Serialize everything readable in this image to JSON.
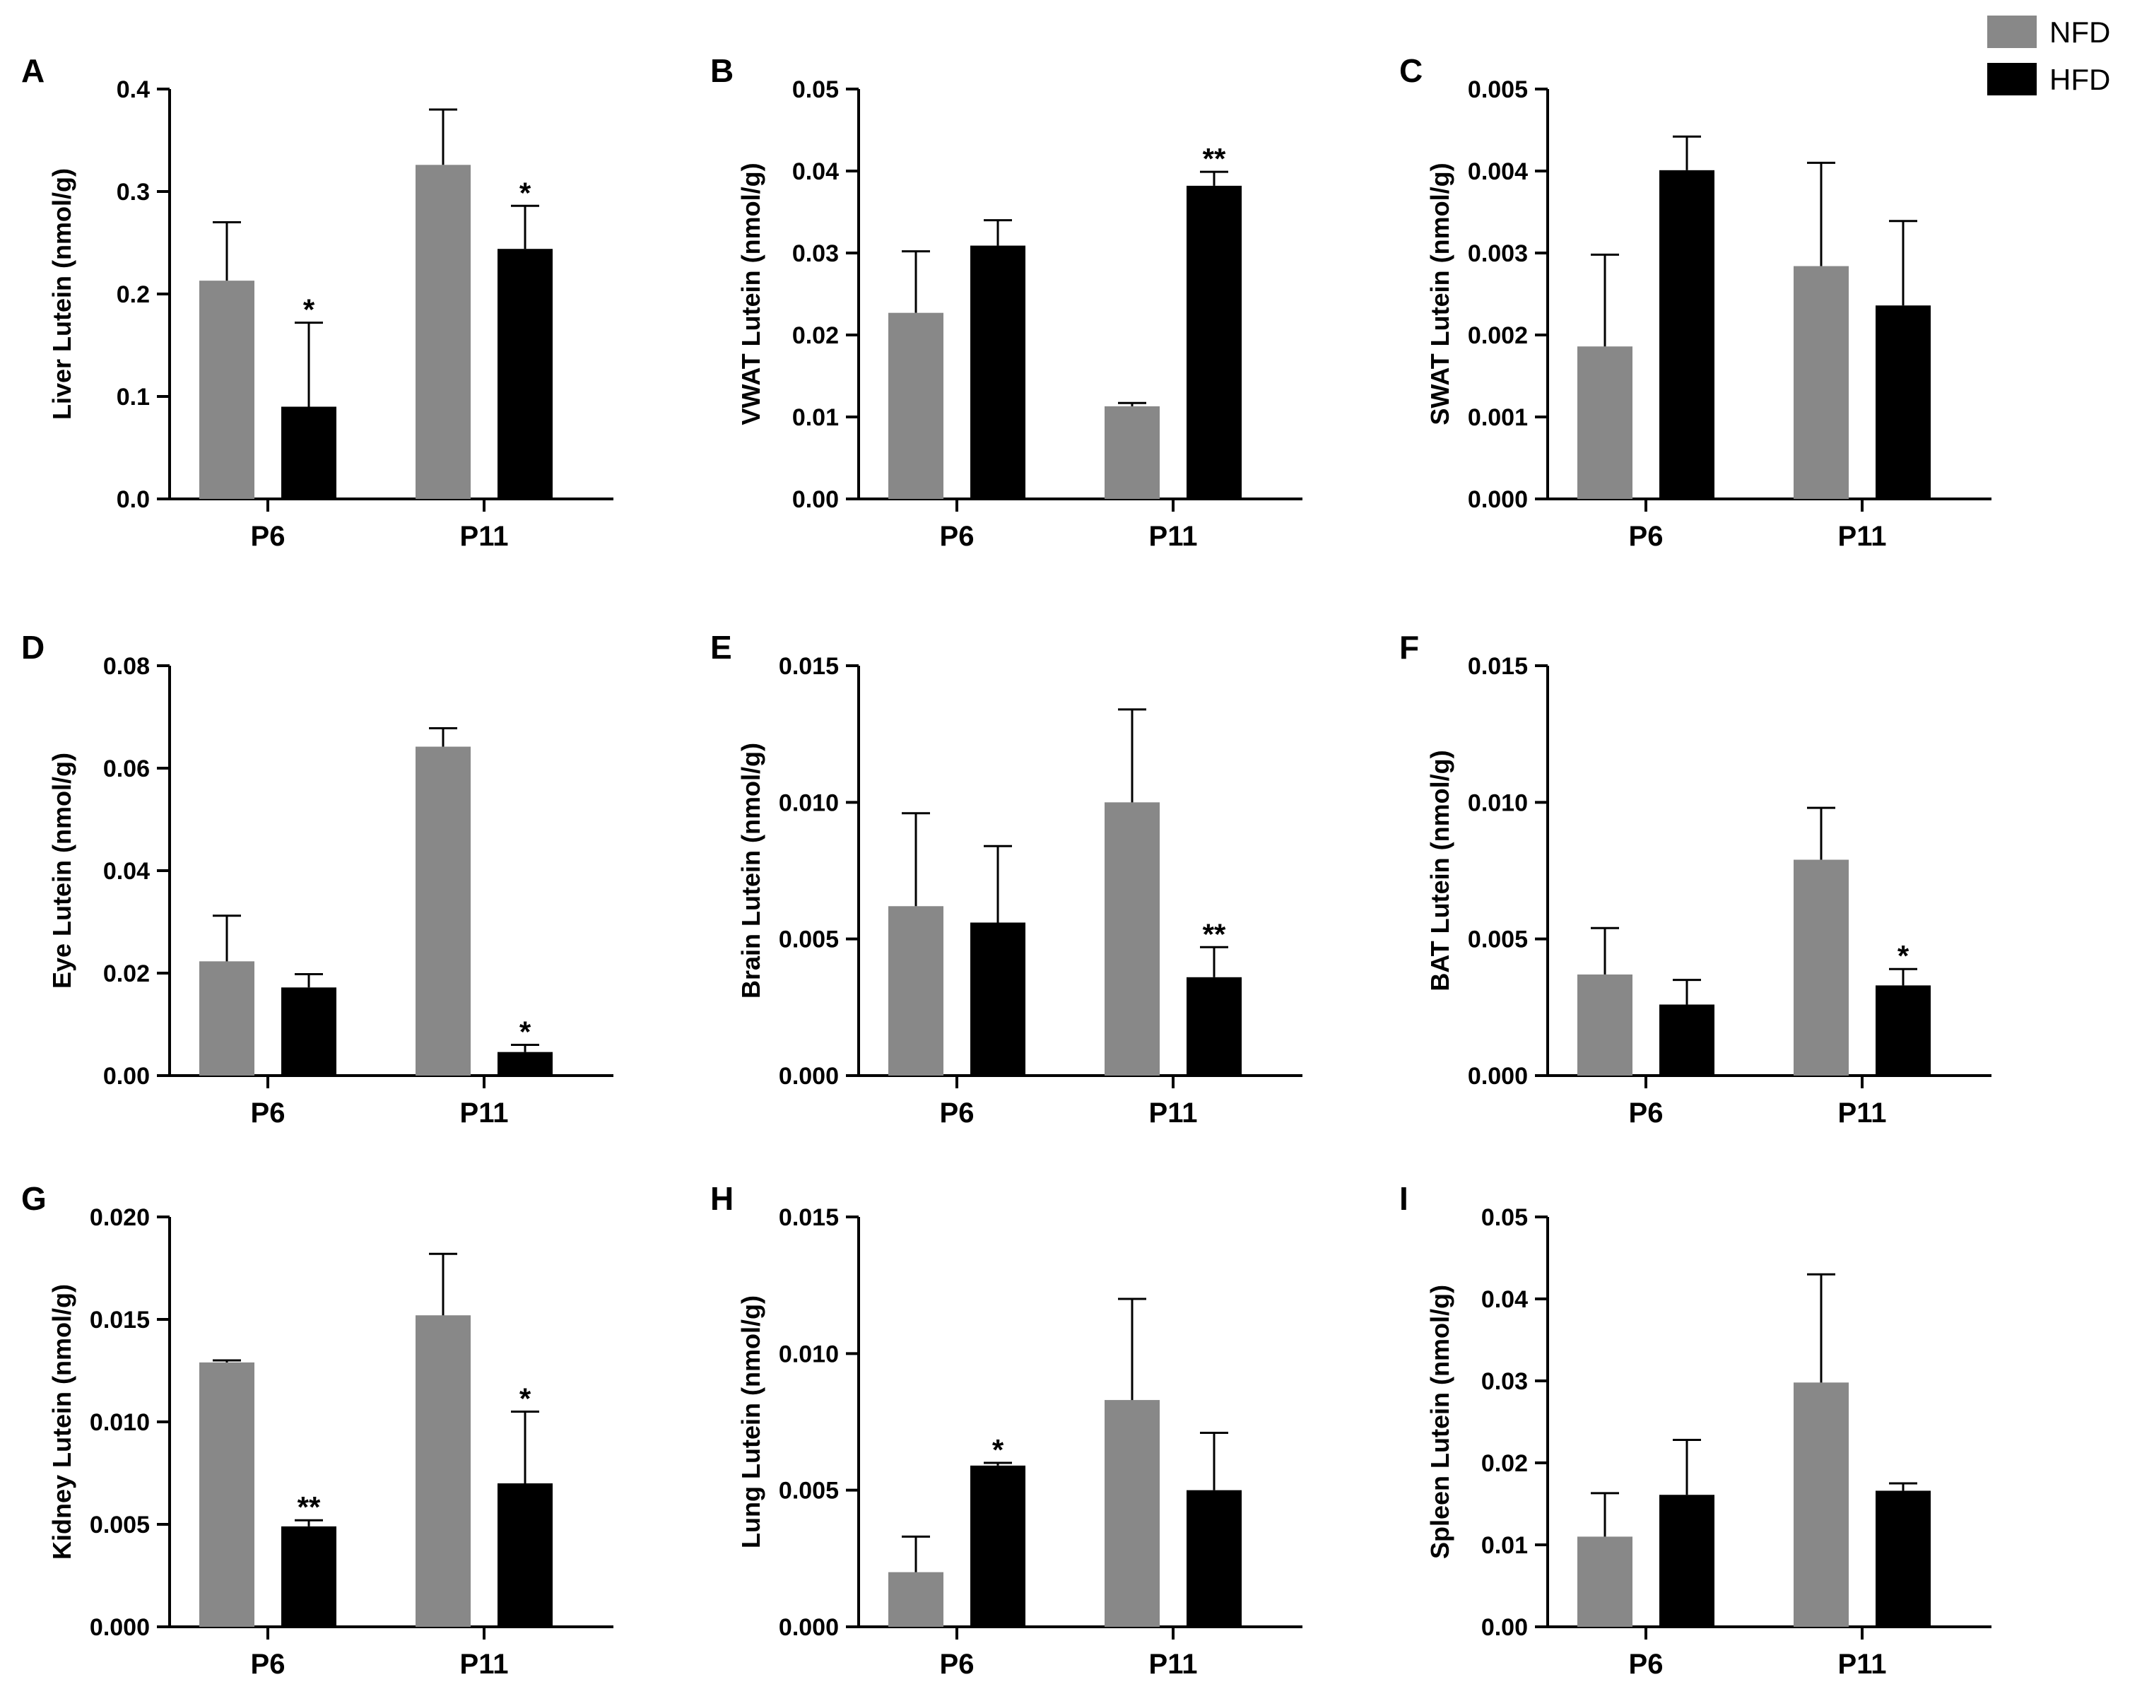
{
  "legend": {
    "entries": [
      {
        "label": "NFD",
        "color": "#888888"
      },
      {
        "label": "HFD",
        "color": "#000000"
      }
    ]
  },
  "chart_data": [
    {
      "panel": "A",
      "type": "bar",
      "ylabel": "Liver Lutein (nmol/g)",
      "categories": [
        "P6",
        "P11"
      ],
      "ylim": [
        0,
        0.4
      ],
      "yticks": [
        "0.0",
        "0.1",
        "0.2",
        "0.3",
        "0.4"
      ],
      "series": [
        {
          "name": "NFD",
          "values": [
            0.213,
            0.326
          ],
          "errors": [
            0.057,
            0.054
          ],
          "significance": [
            "",
            ""
          ]
        },
        {
          "name": "HFD",
          "values": [
            0.09,
            0.244
          ],
          "errors": [
            0.082,
            0.042
          ],
          "significance": [
            "*",
            "*"
          ]
        }
      ]
    },
    {
      "panel": "B",
      "type": "bar",
      "ylabel": "VWAT Lutein (nmol/g)",
      "categories": [
        "P6",
        "P11"
      ],
      "ylim": [
        0,
        0.05
      ],
      "yticks": [
        "0.00",
        "0.01",
        "0.02",
        "0.03",
        "0.04",
        "0.05"
      ],
      "series": [
        {
          "name": "NFD",
          "values": [
            0.0227,
            0.0113
          ],
          "errors": [
            0.0075,
            0.0004
          ],
          "significance": [
            "",
            ""
          ]
        },
        {
          "name": "HFD",
          "values": [
            0.0309,
            0.0382
          ],
          "errors": [
            0.0031,
            0.0017
          ],
          "significance": [
            "",
            "**"
          ]
        }
      ]
    },
    {
      "panel": "C",
      "type": "bar",
      "ylabel": "SWAT Lutein (nmol/g)",
      "categories": [
        "P6",
        "P11"
      ],
      "ylim": [
        0,
        0.005
      ],
      "yticks": [
        "0.000",
        "0.001",
        "0.002",
        "0.003",
        "0.004",
        "0.005"
      ],
      "series": [
        {
          "name": "NFD",
          "values": [
            0.00186,
            0.00284
          ],
          "errors": [
            0.00112,
            0.00126
          ],
          "significance": [
            "",
            ""
          ]
        },
        {
          "name": "HFD",
          "values": [
            0.00401,
            0.00236
          ],
          "errors": [
            0.00041,
            0.00103
          ],
          "significance": [
            "",
            ""
          ]
        }
      ]
    },
    {
      "panel": "D",
      "type": "bar",
      "ylabel": "Eye Lutein (nmol/g)",
      "categories": [
        "P6",
        "P11"
      ],
      "ylim": [
        0,
        0.08
      ],
      "yticks": [
        "0.00",
        "0.02",
        "0.04",
        "0.06",
        "0.08"
      ],
      "series": [
        {
          "name": "NFD",
          "values": [
            0.0223,
            0.0642
          ],
          "errors": [
            0.0089,
            0.0036
          ],
          "significance": [
            "",
            ""
          ]
        },
        {
          "name": "HFD",
          "values": [
            0.0172,
            0.0046
          ],
          "errors": [
            0.0026,
            0.0014
          ],
          "significance": [
            "",
            "*"
          ]
        }
      ]
    },
    {
      "panel": "E",
      "type": "bar",
      "ylabel": "Brain Lutein (nmol/g)",
      "categories": [
        "P6",
        "P11"
      ],
      "ylim": [
        0,
        0.015
      ],
      "yticks": [
        "0.000",
        "0.005",
        "0.010",
        "0.015"
      ],
      "series": [
        {
          "name": "NFD",
          "values": [
            0.0062,
            0.01
          ],
          "errors": [
            0.0034,
            0.0034
          ],
          "significance": [
            "",
            ""
          ]
        },
        {
          "name": "HFD",
          "values": [
            0.0056,
            0.0036
          ],
          "errors": [
            0.0028,
            0.0011
          ],
          "significance": [
            "",
            "**"
          ]
        }
      ]
    },
    {
      "panel": "F",
      "type": "bar",
      "ylabel": "BAT Lutein (nmol/g)",
      "categories": [
        "P6",
        "P11"
      ],
      "ylim": [
        0,
        0.015
      ],
      "yticks": [
        "0.000",
        "0.005",
        "0.010",
        "0.015"
      ],
      "series": [
        {
          "name": "NFD",
          "values": [
            0.0037,
            0.0079
          ],
          "errors": [
            0.0017,
            0.0019
          ],
          "significance": [
            "",
            ""
          ]
        },
        {
          "name": "HFD",
          "values": [
            0.0026,
            0.0033
          ],
          "errors": [
            0.0009,
            0.0006
          ],
          "significance": [
            "",
            "*"
          ]
        }
      ]
    },
    {
      "panel": "G",
      "type": "bar",
      "ylabel": "Kidney Lutein (nmol/g)",
      "categories": [
        "P6",
        "P11"
      ],
      "ylim": [
        0,
        0.02
      ],
      "yticks": [
        "0.000",
        "0.005",
        "0.010",
        "0.015",
        "0.020"
      ],
      "series": [
        {
          "name": "NFD",
          "values": [
            0.0129,
            0.0152
          ],
          "errors": [
            0.0001,
            0.003
          ],
          "significance": [
            "",
            ""
          ]
        },
        {
          "name": "HFD",
          "values": [
            0.0049,
            0.007
          ],
          "errors": [
            0.0003,
            0.0035
          ],
          "significance": [
            "**",
            "*"
          ]
        }
      ]
    },
    {
      "panel": "H",
      "type": "bar",
      "ylabel": "Lung Lutein (nmol/g)",
      "categories": [
        "P6",
        "P11"
      ],
      "ylim": [
        0,
        0.015
      ],
      "yticks": [
        "0.000",
        "0.005",
        "0.010",
        "0.015"
      ],
      "series": [
        {
          "name": "NFD",
          "values": [
            0.002,
            0.0083
          ],
          "errors": [
            0.0013,
            0.0037
          ],
          "significance": [
            "",
            ""
          ]
        },
        {
          "name": "HFD",
          "values": [
            0.0059,
            0.005
          ],
          "errors": [
            0.0001,
            0.0021
          ],
          "significance": [
            "*",
            ""
          ]
        }
      ]
    },
    {
      "panel": "I",
      "type": "bar",
      "ylabel": "Spleen Lutein (nmol/g)",
      "categories": [
        "P6",
        "P11"
      ],
      "ylim": [
        0,
        0.05
      ],
      "yticks": [
        "0.00",
        "0.01",
        "0.02",
        "0.03",
        "0.04",
        "0.05"
      ],
      "series": [
        {
          "name": "NFD",
          "values": [
            0.011,
            0.0298
          ],
          "errors": [
            0.0053,
            0.0132
          ],
          "significance": [
            "",
            ""
          ]
        },
        {
          "name": "HFD",
          "values": [
            0.0161,
            0.0166
          ],
          "errors": [
            0.0067,
            0.0009
          ],
          "significance": [
            "",
            ""
          ]
        }
      ]
    }
  ]
}
